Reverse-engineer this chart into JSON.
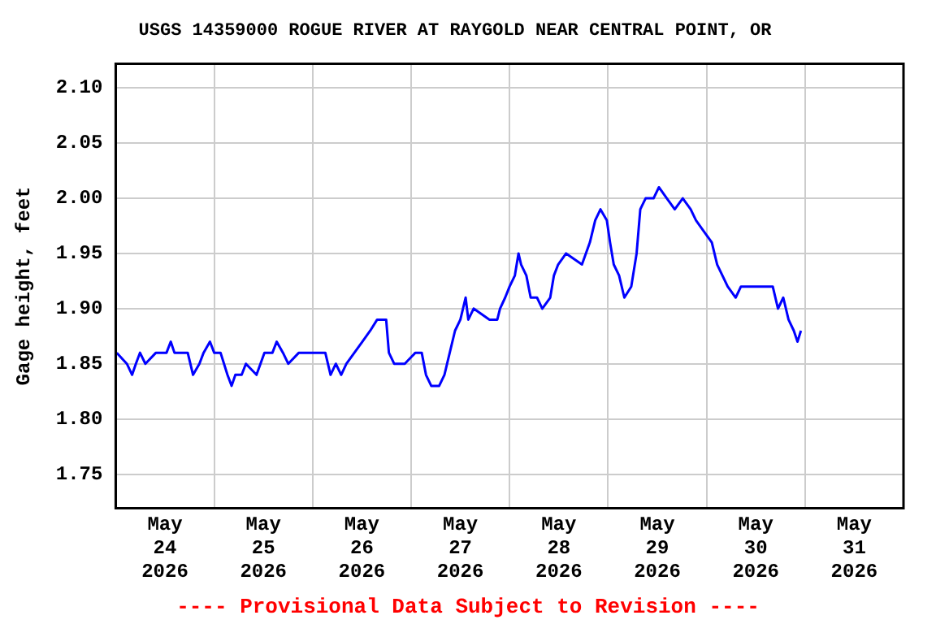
{
  "chart_data": {
    "type": "line",
    "title": "USGS 14359000 ROGUE RIVER AT RAYGOLD NEAR CENTRAL POINT, OR",
    "ylabel": "Gage height, feet",
    "annotations": [
      "---- Provisional Data Subject to Revision ----"
    ],
    "grid": true,
    "legend": false,
    "marker": "none",
    "line_style": "solid",
    "xlim": [
      "2026-05-24T00:00",
      "2026-06-01T00:00"
    ],
    "xticks": [
      {
        "value": "2026-05-24T00:00",
        "label": null
      },
      {
        "value": "2026-05-24T12:00",
        "label": "May\n24\n2026"
      },
      {
        "value": "2026-05-25T00:00",
        "label": null
      },
      {
        "value": "2026-05-25T12:00",
        "label": "May\n25\n2026"
      },
      {
        "value": "2026-05-26T00:00",
        "label": null
      },
      {
        "value": "2026-05-26T12:00",
        "label": "May\n26\n2026"
      },
      {
        "value": "2026-05-27T00:00",
        "label": null
      },
      {
        "value": "2026-05-27T12:00",
        "label": "May\n27\n2026"
      },
      {
        "value": "2026-05-28T00:00",
        "label": null
      },
      {
        "value": "2026-05-28T12:00",
        "label": "May\n28\n2026"
      },
      {
        "value": "2026-05-29T00:00",
        "label": null
      },
      {
        "value": "2026-05-29T12:00",
        "label": "May\n29\n2026"
      },
      {
        "value": "2026-05-30T00:00",
        "label": null
      },
      {
        "value": "2026-05-30T12:00",
        "label": "May\n30\n2026"
      },
      {
        "value": "2026-05-31T00:00",
        "label": null
      },
      {
        "value": "2026-05-31T12:00",
        "label": "May\n31\n2026"
      },
      {
        "value": "2026-06-01T00:00",
        "label": null
      }
    ],
    "ylim": [
      1.719,
      2.122
    ],
    "yticks": [
      {
        "value": 1.75,
        "label": "1.75"
      },
      {
        "value": 1.8,
        "label": "1.80"
      },
      {
        "value": 1.85,
        "label": "1.85"
      },
      {
        "value": 1.9,
        "label": "1.90"
      },
      {
        "value": 1.95,
        "label": "1.95"
      },
      {
        "value": 2.0,
        "label": "2.00"
      },
      {
        "value": 2.05,
        "label": "2.05"
      },
      {
        "value": 2.1,
        "label": "2.10"
      }
    ],
    "series": [
      {
        "color": "#0000ff",
        "x": [
          "2026-05-24T00:15",
          "2026-05-24T02:43",
          "2026-05-24T04:00",
          "2026-05-24T04:55",
          "2026-05-24T05:55",
          "2026-05-24T07:14",
          "2026-05-24T09:48",
          "2026-05-24T12:23",
          "2026-05-24T13:25",
          "2026-05-24T14:19",
          "2026-05-24T17:33",
          "2026-05-24T18:51",
          "2026-05-24T20:24",
          "2026-05-24T21:25",
          "2026-05-24T22:58",
          "2026-05-25T00:00",
          "2026-05-25T01:33",
          "2026-05-25T03:14",
          "2026-05-25T04:15",
          "2026-05-25T05:10",
          "2026-05-25T06:42",
          "2026-05-25T07:44",
          "2026-05-25T10:19",
          "2026-05-25T12:15",
          "2026-05-25T14:12",
          "2026-05-25T15:14",
          "2026-05-25T16:46",
          "2026-05-25T18:03",
          "2026-05-25T20:38",
          "2026-05-26T03:05",
          "2026-05-26T04:22",
          "2026-05-26T05:39",
          "2026-05-26T06:57",
          "2026-05-26T08:14",
          "2026-05-26T10:10",
          "2026-05-26T12:06",
          "2026-05-26T14:02",
          "2026-05-26T15:43",
          "2026-05-26T17:55",
          "2026-05-26T18:35",
          "2026-05-26T19:52",
          "2026-05-26T22:27",
          "2026-05-27T01:02",
          "2026-05-27T02:35",
          "2026-05-27T03:37",
          "2026-05-27T04:54",
          "2026-05-27T06:50",
          "2026-05-27T08:07",
          "2026-05-27T08:46",
          "2026-05-27T10:42",
          "2026-05-27T12:00",
          "2026-05-27T13:17",
          "2026-05-27T13:56",
          "2026-05-27T15:14",
          "2026-05-27T19:06",
          "2026-05-27T21:00",
          "2026-05-27T21:40",
          "2026-05-27T22:55",
          "2026-05-28T00:00",
          "2026-05-28T01:17",
          "2026-05-28T02:10",
          "2026-05-28T02:48",
          "2026-05-28T04:05",
          "2026-05-28T05:08",
          "2026-05-28T06:41",
          "2026-05-28T07:58",
          "2026-05-28T09:54",
          "2026-05-28T10:48",
          "2026-05-28T11:50",
          "2026-05-28T13:46",
          "2026-05-28T17:38",
          "2026-05-28T19:34",
          "2026-05-28T20:52",
          "2026-05-28T22:09",
          "2026-05-28T23:42",
          "2026-05-29T00:29",
          "2026-05-29T01:23",
          "2026-05-29T02:41",
          "2026-05-29T03:58",
          "2026-05-29T05:39",
          "2026-05-29T06:57",
          "2026-05-29T07:51",
          "2026-05-29T09:09",
          "2026-05-29T11:05",
          "2026-05-29T12:23",
          "2026-05-29T14:19",
          "2026-05-29T16:15",
          "2026-05-29T18:12",
          "2026-05-29T20:08",
          "2026-05-29T21:25",
          "2026-05-29T23:21",
          "2026-05-30T01:17",
          "2026-05-30T02:35",
          "2026-05-30T03:52",
          "2026-05-30T05:09",
          "2026-05-30T07:06",
          "2026-05-30T08:23",
          "2026-05-30T10:19",
          "2026-05-30T14:12",
          "2026-05-30T16:08",
          "2026-05-30T17:25",
          "2026-05-30T18:42",
          "2026-05-30T19:59",
          "2026-05-30T21:16",
          "2026-05-30T22:10",
          "2026-05-30T23:00"
        ],
        "values": [
          1.86,
          1.85,
          1.84,
          1.85,
          1.86,
          1.85,
          1.86,
          1.86,
          1.87,
          1.86,
          1.86,
          1.84,
          1.85,
          1.86,
          1.87,
          1.86,
          1.86,
          1.84,
          1.83,
          1.84,
          1.84,
          1.85,
          1.84,
          1.86,
          1.86,
          1.87,
          1.86,
          1.85,
          1.86,
          1.86,
          1.84,
          1.85,
          1.84,
          1.85,
          1.86,
          1.87,
          1.88,
          1.89,
          1.89,
          1.86,
          1.85,
          1.85,
          1.86,
          1.86,
          1.84,
          1.83,
          1.83,
          1.84,
          1.85,
          1.88,
          1.89,
          1.91,
          1.89,
          1.9,
          1.89,
          1.89,
          1.9,
          1.91,
          1.92,
          1.93,
          1.95,
          1.94,
          1.93,
          1.91,
          1.91,
          1.9,
          1.91,
          1.93,
          1.94,
          1.95,
          1.94,
          1.96,
          1.98,
          1.99,
          1.98,
          1.96,
          1.94,
          1.93,
          1.91,
          1.92,
          1.95,
          1.99,
          2.0,
          2.0,
          2.01,
          2.0,
          1.99,
          2.0,
          1.99,
          1.98,
          1.97,
          1.96,
          1.94,
          1.93,
          1.92,
          1.91,
          1.92,
          1.92,
          1.92,
          1.92,
          1.9,
          1.91,
          1.89,
          1.88,
          1.87,
          1.88
        ]
      }
    ]
  }
}
